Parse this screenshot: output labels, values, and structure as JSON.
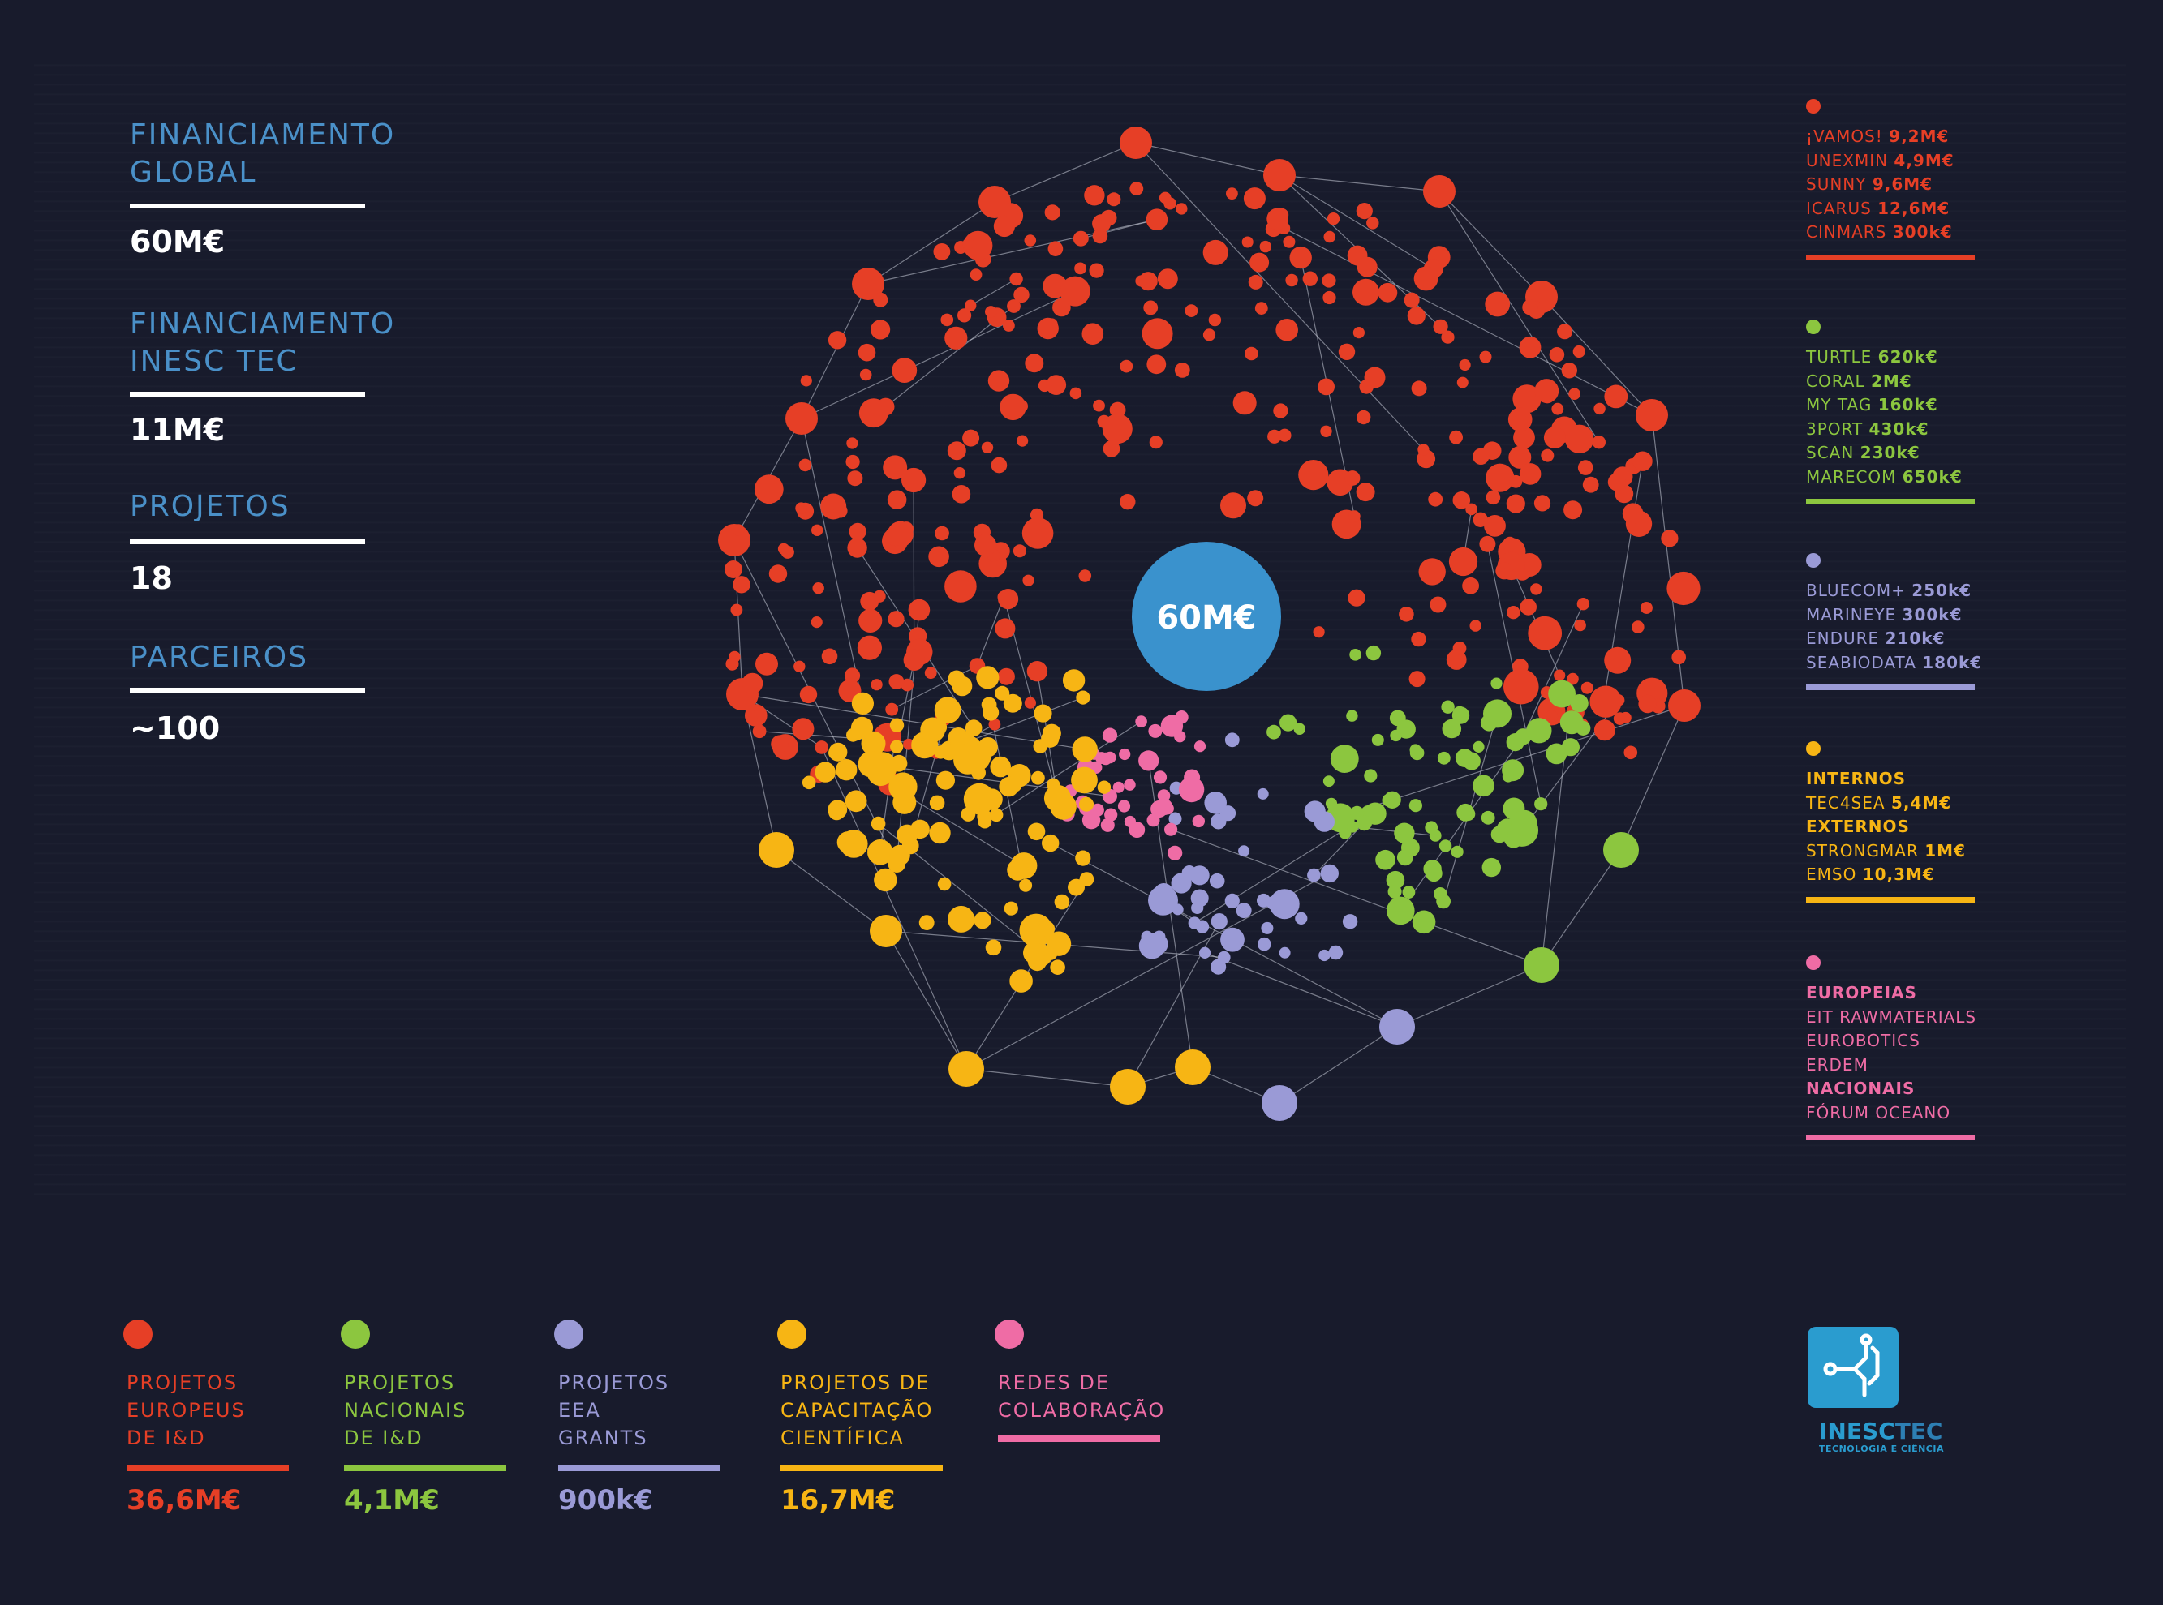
{
  "stats": [
    {
      "label": "FINANCIAMENTO\nGLOBAL",
      "value": "60M€"
    },
    {
      "label": "FINANCIAMENTO\nINESC TEC",
      "value": "11M€"
    },
    {
      "label": "PROJETOS",
      "value": "18"
    },
    {
      "label": "PARCEIROS",
      "value": "~100"
    }
  ],
  "center": {
    "label": "60M€",
    "color": "#3a92cd"
  },
  "colors": {
    "red": "#e63f26",
    "green": "#8cc63f",
    "purple": "#9a9ad6",
    "yellow": "#f7b514",
    "pink": "#ef6ca5",
    "edge": "#c9ccd8"
  },
  "right_legend": [
    {
      "color": "#e63f26",
      "rows": [
        {
          "name": "¡VAMOS!",
          "amount": "9,2M€"
        },
        {
          "name": "UNEXMIN",
          "amount": "4,9M€"
        },
        {
          "name": "SUNNY",
          "amount": "9,6M€"
        },
        {
          "name": "ICARUS",
          "amount": "12,6M€"
        },
        {
          "name": "CINMARS",
          "amount": "300k€"
        }
      ]
    },
    {
      "color": "#8cc63f",
      "rows": [
        {
          "name": "TURTLE",
          "amount": "620k€"
        },
        {
          "name": "CORAL",
          "amount": "2M€"
        },
        {
          "name": "MY TAG",
          "amount": "160k€"
        },
        {
          "name": "3PORT",
          "amount": "430k€"
        },
        {
          "name": "SCAN",
          "amount": "230k€"
        },
        {
          "name": "MARECOM",
          "amount": "650k€"
        }
      ]
    },
    {
      "color": "#9a9ad6",
      "rows": [
        {
          "name": "BLUECOM+",
          "amount": "250k€"
        },
        {
          "name": "MARINEYE",
          "amount": "300k€"
        },
        {
          "name": "ENDURE",
          "amount": "210k€"
        },
        {
          "name": "SEABIODATA",
          "amount": "180k€"
        }
      ]
    },
    {
      "color": "#f7b514",
      "rows": [
        {
          "name": "",
          "amount": "",
          "header": "INTERNOS"
        },
        {
          "name": "TEC4SEA",
          "amount": "5,4M€"
        },
        {
          "name": "",
          "amount": "",
          "header": "EXTERNOS"
        },
        {
          "name": "STRONGMAR",
          "amount": "1M€"
        },
        {
          "name": "EMSO",
          "amount": "10,3M€"
        }
      ]
    },
    {
      "color": "#ef6ca5",
      "rows": [
        {
          "name": "",
          "amount": "",
          "header": "EUROPEIAS"
        },
        {
          "name": "EIT RAWMATERIALS",
          "amount": ""
        },
        {
          "name": "EUROBOTICS",
          "amount": ""
        },
        {
          "name": "ERDEM",
          "amount": ""
        },
        {
          "name": "",
          "amount": "",
          "header": "NACIONAIS"
        },
        {
          "name": "FÓRUM OCEANO",
          "amount": ""
        }
      ]
    }
  ],
  "bottom_legend": [
    {
      "label": "PROJETOS\nEUROPEUS\nDE I&D",
      "value": "36,6M€",
      "color": "#e63f26"
    },
    {
      "label": "PROJETOS\nNACIONAIS\nDE I&D",
      "value": "4,1M€",
      "color": "#8cc63f"
    },
    {
      "label": "PROJETOS\nEEA\nGRANTS",
      "value": "900k€",
      "color": "#9a9ad6"
    },
    {
      "label": "PROJETOS DE\nCAPACITAÇÃO\nCIENTÍFICA",
      "value": "16,7M€",
      "color": "#f7b514"
    },
    {
      "label": "REDES DE\nCOLABORAÇÃO",
      "value": "",
      "color": "#ef6ca5"
    }
  ],
  "logo": {
    "name_a": "INESC",
    "name_b": "TEC",
    "tagline": "TECNOLOGIA E CIÊNCIA"
  }
}
